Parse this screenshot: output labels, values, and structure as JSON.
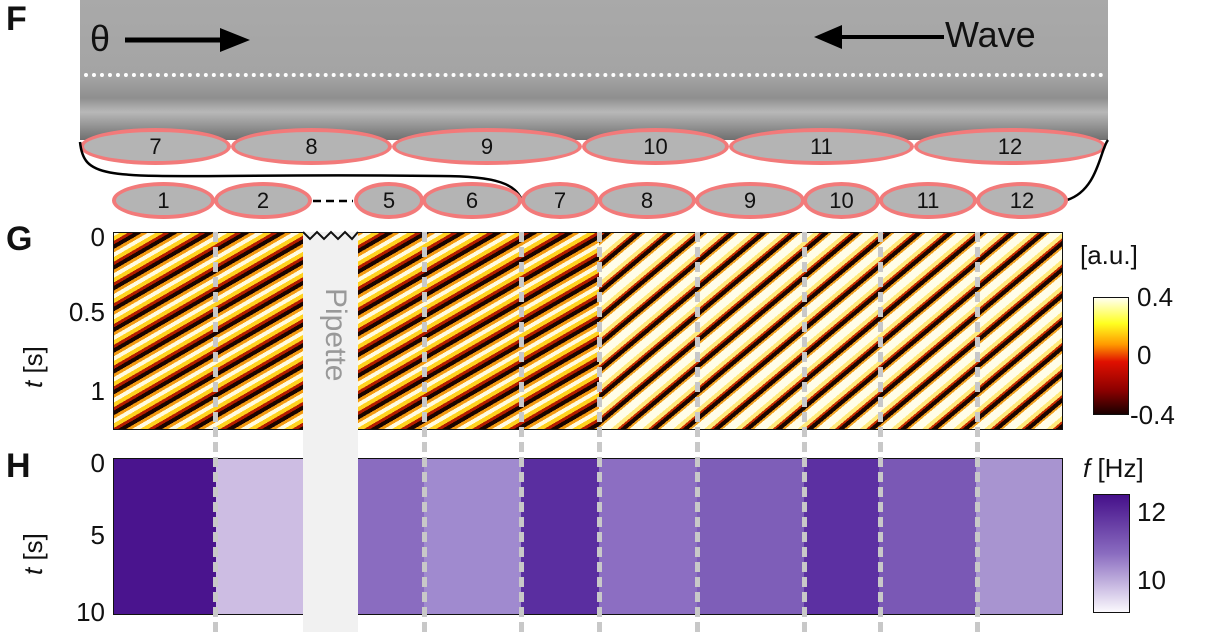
{
  "panels": {
    "F": "F",
    "G": "G",
    "H": "H"
  },
  "panelF": {
    "theta_label": "θ",
    "wave_label": "Wave",
    "top_cells": [
      "7",
      "8",
      "9",
      "10",
      "11",
      "12"
    ],
    "bottom_cells": [
      "1",
      "2",
      "5",
      "6",
      "7",
      "8",
      "9",
      "10",
      "11",
      "12"
    ]
  },
  "panelG": {
    "y_label_var": "t",
    "y_label_unit": " [s]",
    "y_ticks": [
      "0",
      "0.5",
      "1"
    ],
    "pipette_label": "Pipette",
    "colorbar": {
      "title": "[a.u.]",
      "ticks": [
        "0.4",
        "0",
        "-0.4"
      ],
      "colormap": [
        "#1a0000",
        "#e01000",
        "#ffff20",
        "#ffffff"
      ]
    }
  },
  "panelH": {
    "y_label_var": "t",
    "y_label_unit": " [s]",
    "y_ticks": [
      "0",
      "5",
      "10"
    ],
    "colorbar": {
      "title_var": "f",
      "title_unit": " [Hz]",
      "ticks": [
        "12",
        "10"
      ],
      "colormap": [
        "#ffffff",
        "#45108a"
      ]
    }
  }
}
